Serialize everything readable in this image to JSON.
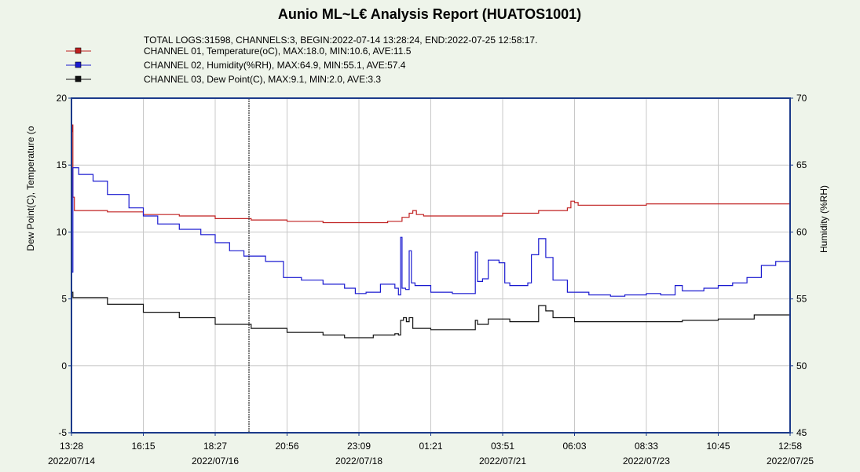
{
  "chart_data": {
    "type": "line",
    "title": "Aunio ML~L€ Analysis Report (HUATOS1001)",
    "summary": "TOTAL LOGS:31598, CHANNELS:3, BEGIN:2022-07-14 13:28:24, END:2022-07-25 12:58:17.",
    "legend": [
      {
        "text": "CHANNEL 01,    Temperature(oC),     MAX:18.0,     MIN:10.6,     AVE:11.5",
        "color": "#c02020"
      },
      {
        "text": "CHANNEL 02,    Humidity(%RH),     MAX:64.9,     MIN:55.1,     AVE:57.4",
        "color": "#1a1ad0"
      },
      {
        "text": "CHANNEL 03,    Dew Point(C),     MAX:9.1,     MIN:2.0,     AVE:3.3",
        "color": "#111111"
      }
    ],
    "ylabel_left": "Dew Point(C),     Temperature (o",
    "ylabel_right": "Humidity (%RH)",
    "ylim_left": [
      -5,
      20
    ],
    "ylim_right": [
      45,
      70
    ],
    "yticks_left": [
      "20",
      "15",
      "10",
      "5",
      "0",
      "-5"
    ],
    "yticks_right": [
      "70",
      "65",
      "60",
      "55",
      "50",
      "45"
    ],
    "xlim": [
      0,
      10
    ],
    "xticks": [
      {
        "x": 0,
        "time": "13:28",
        "date": "2022/07/14"
      },
      {
        "x": 1,
        "time": "16:15",
        "date": ""
      },
      {
        "x": 2,
        "time": "18:27",
        "date": "2022/07/16"
      },
      {
        "x": 3,
        "time": "20:56",
        "date": ""
      },
      {
        "x": 4,
        "time": "23:09",
        "date": "2022/07/18"
      },
      {
        "x": 5,
        "time": "01:21",
        "date": ""
      },
      {
        "x": 6,
        "time": "03:51",
        "date": "2022/07/21"
      },
      {
        "x": 7,
        "time": "06:03",
        "date": ""
      },
      {
        "x": 8,
        "time": "08:33",
        "date": "2022/07/23"
      },
      {
        "x": 9,
        "time": "10:45",
        "date": ""
      },
      {
        "x": 10,
        "time": "12:58",
        "date": "2022/07/25"
      }
    ],
    "marker_x": 2.47,
    "grid": true,
    "colors": {
      "temperature": "#c02020",
      "humidity": "#1a1ad0",
      "dew_point": "#111111",
      "axis": "#1b3a8a",
      "background": "#eef4ea"
    },
    "series": [
      {
        "name": "Temperature(oC)",
        "axis": "left",
        "color": "#c02020",
        "points": [
          [
            0,
            17.5
          ],
          [
            0.01,
            18.0
          ],
          [
            0.02,
            12.6
          ],
          [
            0.04,
            11.6
          ],
          [
            0.5,
            11.5
          ],
          [
            1.0,
            11.3
          ],
          [
            1.5,
            11.2
          ],
          [
            2.0,
            11.0
          ],
          [
            2.5,
            10.9
          ],
          [
            3.0,
            10.8
          ],
          [
            3.5,
            10.7
          ],
          [
            4.0,
            10.7
          ],
          [
            4.4,
            10.8
          ],
          [
            4.6,
            11.1
          ],
          [
            4.7,
            11.4
          ],
          [
            4.75,
            11.6
          ],
          [
            4.8,
            11.3
          ],
          [
            4.9,
            11.2
          ],
          [
            5.5,
            11.2
          ],
          [
            6.0,
            11.4
          ],
          [
            6.5,
            11.6
          ],
          [
            6.9,
            11.8
          ],
          [
            6.95,
            12.3
          ],
          [
            7.0,
            12.2
          ],
          [
            7.05,
            12.0
          ],
          [
            7.5,
            12.0
          ],
          [
            8.0,
            12.1
          ],
          [
            8.5,
            12.1
          ],
          [
            9.0,
            12.1
          ],
          [
            9.5,
            12.1
          ],
          [
            10.0,
            12.1
          ]
        ]
      },
      {
        "name": "Humidity(%RH)",
        "axis": "right",
        "color": "#1a1ad0",
        "points": [
          [
            0,
            57.0
          ],
          [
            0.02,
            64.8
          ],
          [
            0.1,
            64.3
          ],
          [
            0.3,
            63.8
          ],
          [
            0.5,
            62.8
          ],
          [
            0.8,
            61.8
          ],
          [
            1.0,
            61.2
          ],
          [
            1.2,
            60.6
          ],
          [
            1.5,
            60.2
          ],
          [
            1.8,
            59.8
          ],
          [
            2.0,
            59.2
          ],
          [
            2.2,
            58.6
          ],
          [
            2.4,
            58.2
          ],
          [
            2.7,
            57.8
          ],
          [
            2.95,
            57.6
          ],
          [
            2.95,
            56.6
          ],
          [
            3.2,
            56.4
          ],
          [
            3.5,
            56.1
          ],
          [
            3.8,
            55.8
          ],
          [
            3.95,
            55.4
          ],
          [
            4.1,
            55.5
          ],
          [
            4.3,
            56.1
          ],
          [
            4.5,
            55.8
          ],
          [
            4.55,
            55.3
          ],
          [
            4.58,
            59.6
          ],
          [
            4.6,
            55.8
          ],
          [
            4.65,
            55.7
          ],
          [
            4.7,
            58.6
          ],
          [
            4.73,
            56.2
          ],
          [
            4.78,
            56.0
          ],
          [
            5.0,
            55.5
          ],
          [
            5.3,
            55.4
          ],
          [
            5.5,
            55.4
          ],
          [
            5.6,
            55.4
          ],
          [
            5.62,
            58.5
          ],
          [
            5.65,
            56.3
          ],
          [
            5.72,
            56.5
          ],
          [
            5.8,
            57.9
          ],
          [
            5.95,
            57.7
          ],
          [
            6.03,
            56.2
          ],
          [
            6.1,
            56.0
          ],
          [
            6.35,
            56.2
          ],
          [
            6.4,
            58.3
          ],
          [
            6.5,
            59.5
          ],
          [
            6.6,
            58.1
          ],
          [
            6.7,
            56.4
          ],
          [
            6.9,
            55.5
          ],
          [
            7.2,
            55.3
          ],
          [
            7.5,
            55.2
          ],
          [
            7.7,
            55.3
          ],
          [
            8.0,
            55.4
          ],
          [
            8.2,
            55.3
          ],
          [
            8.4,
            56.0
          ],
          [
            8.5,
            55.6
          ],
          [
            8.8,
            55.8
          ],
          [
            9.0,
            56.0
          ],
          [
            9.2,
            56.2
          ],
          [
            9.4,
            56.6
          ],
          [
            9.6,
            57.5
          ],
          [
            9.8,
            57.8
          ],
          [
            10.0,
            58.2
          ]
        ]
      },
      {
        "name": "Dew Point(C)",
        "axis": "left",
        "color": "#111111",
        "points": [
          [
            0,
            5.5
          ],
          [
            0.02,
            5.1
          ],
          [
            0.5,
            4.6
          ],
          [
            1.0,
            4.0
          ],
          [
            1.5,
            3.6
          ],
          [
            2.0,
            3.1
          ],
          [
            2.5,
            2.8
          ],
          [
            3.0,
            2.5
          ],
          [
            3.5,
            2.3
          ],
          [
            3.8,
            2.1
          ],
          [
            4.0,
            2.1
          ],
          [
            4.2,
            2.3
          ],
          [
            4.5,
            2.4
          ],
          [
            4.55,
            2.3
          ],
          [
            4.58,
            3.4
          ],
          [
            4.62,
            3.6
          ],
          [
            4.66,
            3.3
          ],
          [
            4.7,
            3.6
          ],
          [
            4.75,
            2.8
          ],
          [
            5.0,
            2.7
          ],
          [
            5.5,
            2.7
          ],
          [
            5.6,
            2.7
          ],
          [
            5.62,
            3.4
          ],
          [
            5.65,
            3.1
          ],
          [
            5.8,
            3.5
          ],
          [
            6.0,
            3.5
          ],
          [
            6.1,
            3.3
          ],
          [
            6.4,
            3.3
          ],
          [
            6.5,
            4.5
          ],
          [
            6.6,
            4.1
          ],
          [
            6.7,
            3.6
          ],
          [
            7.0,
            3.3
          ],
          [
            7.5,
            3.3
          ],
          [
            8.0,
            3.3
          ],
          [
            8.5,
            3.4
          ],
          [
            9.0,
            3.5
          ],
          [
            9.5,
            3.8
          ],
          [
            10.0,
            4.0
          ]
        ]
      }
    ]
  }
}
